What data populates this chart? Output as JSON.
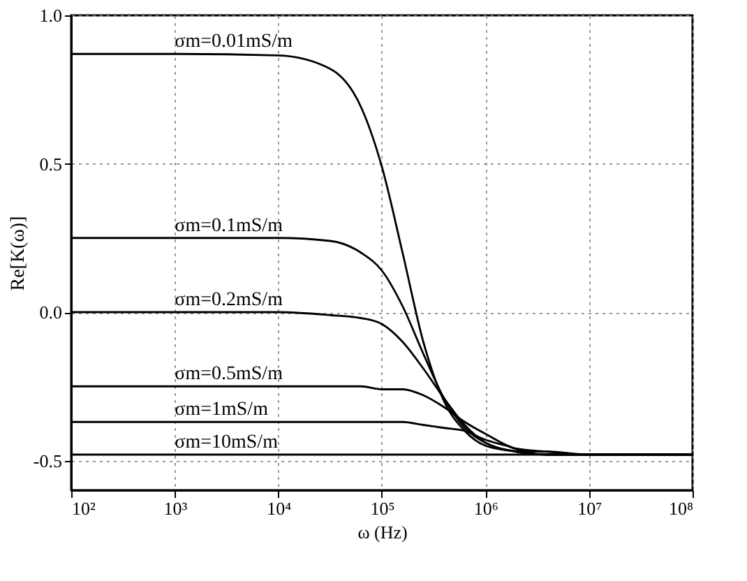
{
  "chart_data": {
    "type": "line",
    "xlabel": "ω (Hz)",
    "ylabel": "Re[K(ω)]",
    "log": "x",
    "grid": true,
    "legend": false,
    "marker": "none",
    "line_style": "solid",
    "xlim": [
      100,
      100000000
    ],
    "xticks": [
      {
        "value": 100,
        "label": "10²"
      },
      {
        "value": 1000,
        "label": "10³"
      },
      {
        "value": 10000,
        "label": "10⁴"
      },
      {
        "value": 100000,
        "label": "10⁵"
      },
      {
        "value": 1000000,
        "label": "10⁶"
      },
      {
        "value": 10000000,
        "label": "10⁷"
      },
      {
        "value": 100000000,
        "label": "10⁸"
      }
    ],
    "ylim": [
      -0.6,
      1.0
    ],
    "yticks": [
      {
        "value": -0.5,
        "label": "-0.5"
      },
      {
        "value": 0,
        "label": "0.0"
      },
      {
        "value": 0.5,
        "label": "0.5"
      },
      {
        "value": 1,
        "label": "1.0"
      }
    ],
    "series": [
      {
        "name": "σm=0.01mS/m",
        "color": "#000000",
        "x": [
          100,
          1000,
          10000,
          31623,
          63096,
          100000,
          158489,
          251189,
          398107,
          630957,
          1000000,
          1995262,
          3981072,
          10000000,
          100000000
        ],
        "values": [
          0.87,
          0.87,
          0.865,
          0.82,
          0.69,
          0.49,
          0.2,
          -0.1,
          -0.3,
          -0.4,
          -0.45,
          -0.47,
          -0.48,
          -0.48,
          -0.48
        ]
      },
      {
        "name": "σm=0.1mS/m",
        "color": "#000000",
        "x": [
          100,
          1000,
          10000,
          31623,
          63096,
          100000,
          158489,
          251189,
          398107,
          630957,
          1000000,
          1995262,
          3981072,
          10000000,
          100000000
        ],
        "values": [
          0.25,
          0.25,
          0.25,
          0.24,
          0.2,
          0.14,
          0.02,
          -0.14,
          -0.29,
          -0.39,
          -0.44,
          -0.47,
          -0.48,
          -0.48,
          -0.48
        ]
      },
      {
        "name": "σm=0.2mS/m",
        "color": "#000000",
        "x": [
          100,
          1000,
          10000,
          31623,
          63096,
          100000,
          158489,
          251189,
          398107,
          630957,
          1000000,
          1995262,
          3981072,
          10000000,
          100000000
        ],
        "values": [
          0.0,
          0.0,
          0.0,
          -0.01,
          -0.02,
          -0.04,
          -0.1,
          -0.19,
          -0.29,
          -0.38,
          -0.44,
          -0.47,
          -0.48,
          -0.48,
          -0.48
        ]
      },
      {
        "name": "σm=0.5mS/m",
        "color": "#000000",
        "x": [
          100,
          1000,
          10000,
          31623,
          63096,
          100000,
          158489,
          251189,
          398107,
          630957,
          1000000,
          1995262,
          3981072,
          10000000,
          100000000
        ],
        "values": [
          -0.25,
          -0.25,
          -0.25,
          -0.25,
          -0.25,
          -0.26,
          -0.26,
          -0.28,
          -0.32,
          -0.37,
          -0.41,
          -0.46,
          -0.47,
          -0.48,
          -0.48
        ]
      },
      {
        "name": "σm=1mS/m",
        "color": "#000000",
        "x": [
          100,
          1000,
          10000,
          100000,
          158489,
          251189,
          398107,
          630957,
          1000000,
          1584893,
          2511886,
          3981072,
          10000000,
          100000000
        ],
        "values": [
          -0.37,
          -0.37,
          -0.37,
          -0.37,
          -0.37,
          -0.38,
          -0.39,
          -0.4,
          -0.43,
          -0.45,
          -0.47,
          -0.47,
          -0.48,
          -0.48
        ]
      },
      {
        "name": "σm=10mS/m",
        "color": "#000000",
        "x": [
          100,
          1000,
          10000,
          100000,
          1000000,
          10000000,
          100000000
        ],
        "values": [
          -0.48,
          -0.48,
          -0.48,
          -0.48,
          -0.48,
          -0.48,
          -0.48
        ]
      }
    ]
  }
}
